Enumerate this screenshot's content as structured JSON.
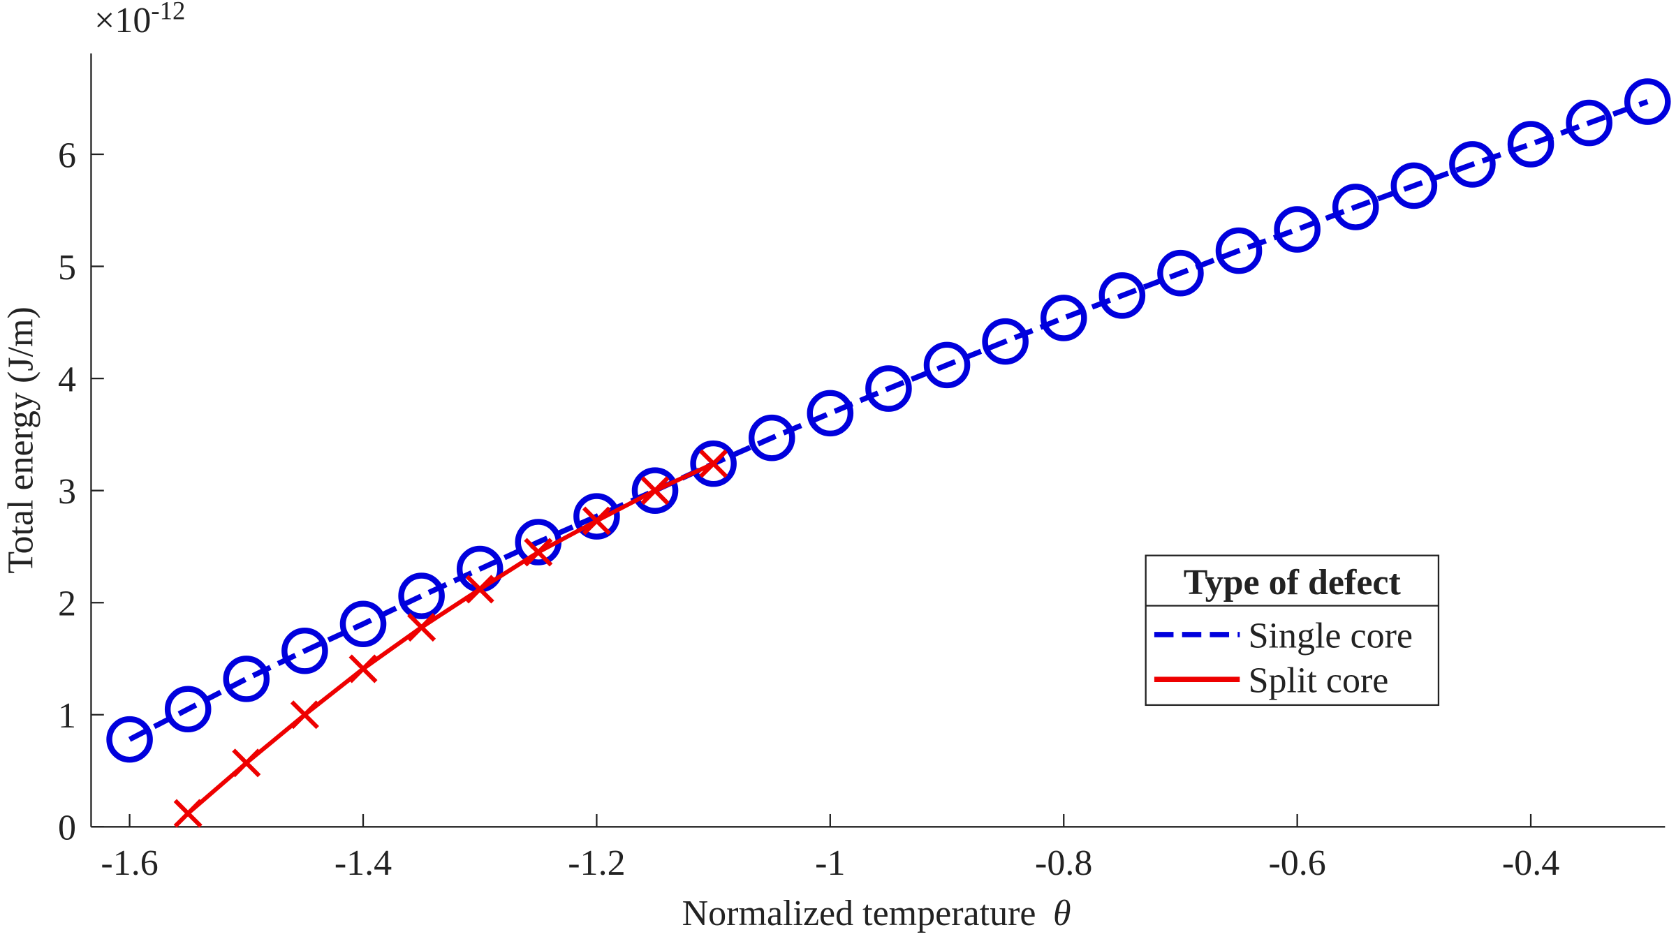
{
  "chart_data": {
    "type": "line",
    "xlabel": "Normalized  temperature",
    "xlabel_symbol": "θ",
    "ylabel": "Total energy (J/m)",
    "exponent_base": "×10",
    "exponent_power": "-12",
    "xlim": [
      -1.633,
      -0.285
    ],
    "ylim": [
      0,
      6.9
    ],
    "xticks": [
      -1.6,
      -1.4,
      -1.2,
      -1,
      -0.8,
      -0.6,
      -0.4
    ],
    "yticks": [
      0,
      1,
      2,
      3,
      4,
      5,
      6
    ],
    "legend_title": "Type of defect",
    "legend": "lower right",
    "series": [
      {
        "name": "Single core",
        "color": "#0000dd",
        "dash": "dashed",
        "marker": "circle",
        "x": [
          -1.6,
          -1.55,
          -1.5,
          -1.45,
          -1.4,
          -1.35,
          -1.3,
          -1.25,
          -1.2,
          -1.15,
          -1.1,
          -1.05,
          -1,
          -0.95,
          -0.9,
          -0.85,
          -0.8,
          -0.75,
          -0.7,
          -0.65,
          -0.6,
          -0.55,
          -0.5,
          -0.45,
          -0.4,
          -0.35,
          -0.3
        ],
        "values": [
          0.78,
          1.05,
          1.32,
          1.57,
          1.81,
          2.06,
          2.3,
          2.54,
          2.77,
          3.0,
          3.24,
          3.47,
          3.69,
          3.91,
          4.12,
          4.33,
          4.54,
          4.74,
          4.94,
          5.14,
          5.33,
          5.53,
          5.72,
          5.91,
          6.09,
          6.28,
          6.47
        ]
      },
      {
        "name": "Split core",
        "color": "#ee0000",
        "dash": "solid",
        "marker": "x",
        "x": [
          -1.55,
          -1.5,
          -1.45,
          -1.4,
          -1.35,
          -1.3,
          -1.25,
          -1.2,
          -1.15,
          -1.1
        ],
        "values": [
          0.12,
          0.57,
          1.0,
          1.41,
          1.78,
          2.12,
          2.45,
          2.73,
          3.0,
          3.24
        ]
      }
    ]
  }
}
